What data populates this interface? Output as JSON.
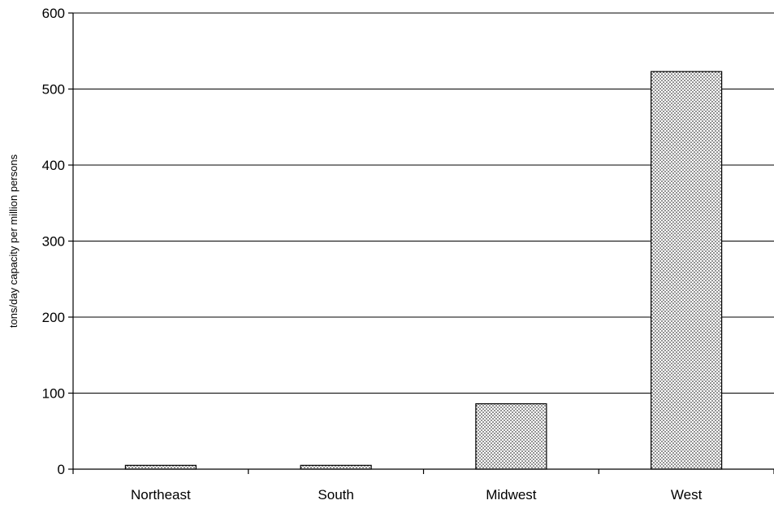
{
  "chart_data": {
    "type": "bar",
    "title": "",
    "xlabel": "",
    "ylabel": "tons/day capacity per million persons",
    "categories": [
      "Northeast",
      "South",
      "Midwest",
      "West"
    ],
    "values": [
      5,
      5,
      86,
      523
    ],
    "ylim": [
      0,
      600
    ],
    "yticks": [
      0,
      100,
      200,
      300,
      400,
      500,
      600
    ],
    "grid": "horizontal",
    "legend": "none",
    "bar_fill": "stippled dots",
    "colors": {
      "bar_outline": "#000000",
      "bar_dots": "#000000",
      "gridline": "#000000",
      "background": "#ffffff"
    }
  }
}
